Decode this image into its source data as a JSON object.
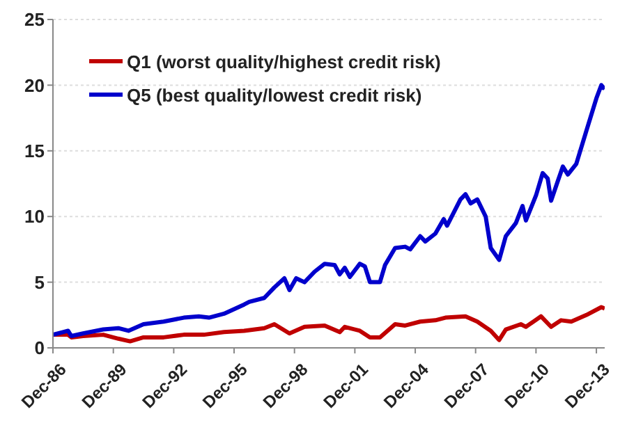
{
  "chart_data": {
    "type": "line",
    "xlim": [
      "1986-12",
      "2014-05"
    ],
    "xticks": [
      {
        "value": "1986-12",
        "label": "Dec-86"
      },
      {
        "value": "1989-12",
        "label": "Dec-89"
      },
      {
        "value": "1992-12",
        "label": "Dec-92"
      },
      {
        "value": "1995-12",
        "label": "Dec-95"
      },
      {
        "value": "1998-12",
        "label": "Dec-98"
      },
      {
        "value": "2001-12",
        "label": "Dec-01"
      },
      {
        "value": "2004-12",
        "label": "Dec-04"
      },
      {
        "value": "2007-12",
        "label": "Dec-07"
      },
      {
        "value": "2010-12",
        "label": "Dec-10"
      },
      {
        "value": "2013-12",
        "label": "Dec-13"
      }
    ],
    "ylim": [
      0,
      25
    ],
    "yticks": [
      0,
      5,
      10,
      15,
      20,
      25
    ],
    "grid": "y",
    "legend": "top left",
    "marker": "none",
    "line_style": "solid",
    "series": [
      {
        "name": "Q1 (worst quality/highest credit risk)",
        "color": "#c00000",
        "x": [
          "1986-12",
          "1987-09",
          "1987-11",
          "1988-06",
          "1989-06",
          "1990-03",
          "1990-10",
          "1991-06",
          "1992-06",
          "1993-06",
          "1994-06",
          "1995-06",
          "1996-06",
          "1997-06",
          "1997-12",
          "1998-09",
          "1999-06",
          "2000-06",
          "2001-03",
          "2001-06",
          "2002-03",
          "2002-09",
          "2003-03",
          "2003-12",
          "2004-06",
          "2005-03",
          "2005-12",
          "2006-06",
          "2007-06",
          "2008-01",
          "2008-09",
          "2009-02",
          "2009-06",
          "2010-03",
          "2010-06",
          "2011-03",
          "2011-09",
          "2012-03",
          "2012-09",
          "2013-06",
          "2014-03",
          "2014-05"
        ],
        "values": [
          1.0,
          1.0,
          0.8,
          0.9,
          1.0,
          0.7,
          0.5,
          0.8,
          0.8,
          1.0,
          1.0,
          1.2,
          1.3,
          1.5,
          1.8,
          1.1,
          1.6,
          1.7,
          1.2,
          1.6,
          1.3,
          0.8,
          0.8,
          1.8,
          1.7,
          2.0,
          2.1,
          2.3,
          2.4,
          2.0,
          1.3,
          0.6,
          1.4,
          1.8,
          1.6,
          2.4,
          1.6,
          2.1,
          2.0,
          2.5,
          3.1,
          3.0
        ]
      },
      {
        "name": "Q5 (best quality/lowest credit risk)",
        "color": "#0000cc",
        "x": [
          "1986-12",
          "1987-06",
          "1987-09",
          "1987-11",
          "1988-06",
          "1989-06",
          "1990-03",
          "1990-09",
          "1991-06",
          "1992-06",
          "1993-06",
          "1994-03",
          "1994-09",
          "1995-06",
          "1996-06",
          "1996-09",
          "1997-06",
          "1997-12",
          "1998-06",
          "1998-09",
          "1999-01",
          "1999-06",
          "1999-12",
          "2000-06",
          "2000-12",
          "2001-03",
          "2001-06",
          "2001-09",
          "2002-03",
          "2002-06",
          "2002-09",
          "2003-03",
          "2003-06",
          "2003-12",
          "2004-06",
          "2004-09",
          "2005-03",
          "2005-06",
          "2005-12",
          "2006-05",
          "2006-07",
          "2007-03",
          "2007-06",
          "2007-09",
          "2008-01",
          "2008-06",
          "2008-09",
          "2009-02",
          "2009-06",
          "2009-12",
          "2010-04",
          "2010-06",
          "2010-12",
          "2011-04",
          "2011-07",
          "2011-09",
          "2012-01",
          "2012-04",
          "2012-07",
          "2012-12",
          "2013-06",
          "2013-12",
          "2014-03",
          "2014-05"
        ],
        "values": [
          1.0,
          1.2,
          1.3,
          0.9,
          1.1,
          1.4,
          1.5,
          1.3,
          1.8,
          2.0,
          2.3,
          2.4,
          2.3,
          2.6,
          3.3,
          3.5,
          3.8,
          4.6,
          5.3,
          4.4,
          5.3,
          5.0,
          5.8,
          6.4,
          6.3,
          5.6,
          6.1,
          5.4,
          6.4,
          6.2,
          5.0,
          5.0,
          6.3,
          7.6,
          7.7,
          7.5,
          8.5,
          8.1,
          8.7,
          9.8,
          9.3,
          11.3,
          11.7,
          11.0,
          11.3,
          10.0,
          7.6,
          6.7,
          8.5,
          9.5,
          10.8,
          9.7,
          11.6,
          13.3,
          12.9,
          11.2,
          12.7,
          13.8,
          13.2,
          14.0,
          16.5,
          19.0,
          20.0,
          19.7
        ]
      }
    ]
  }
}
